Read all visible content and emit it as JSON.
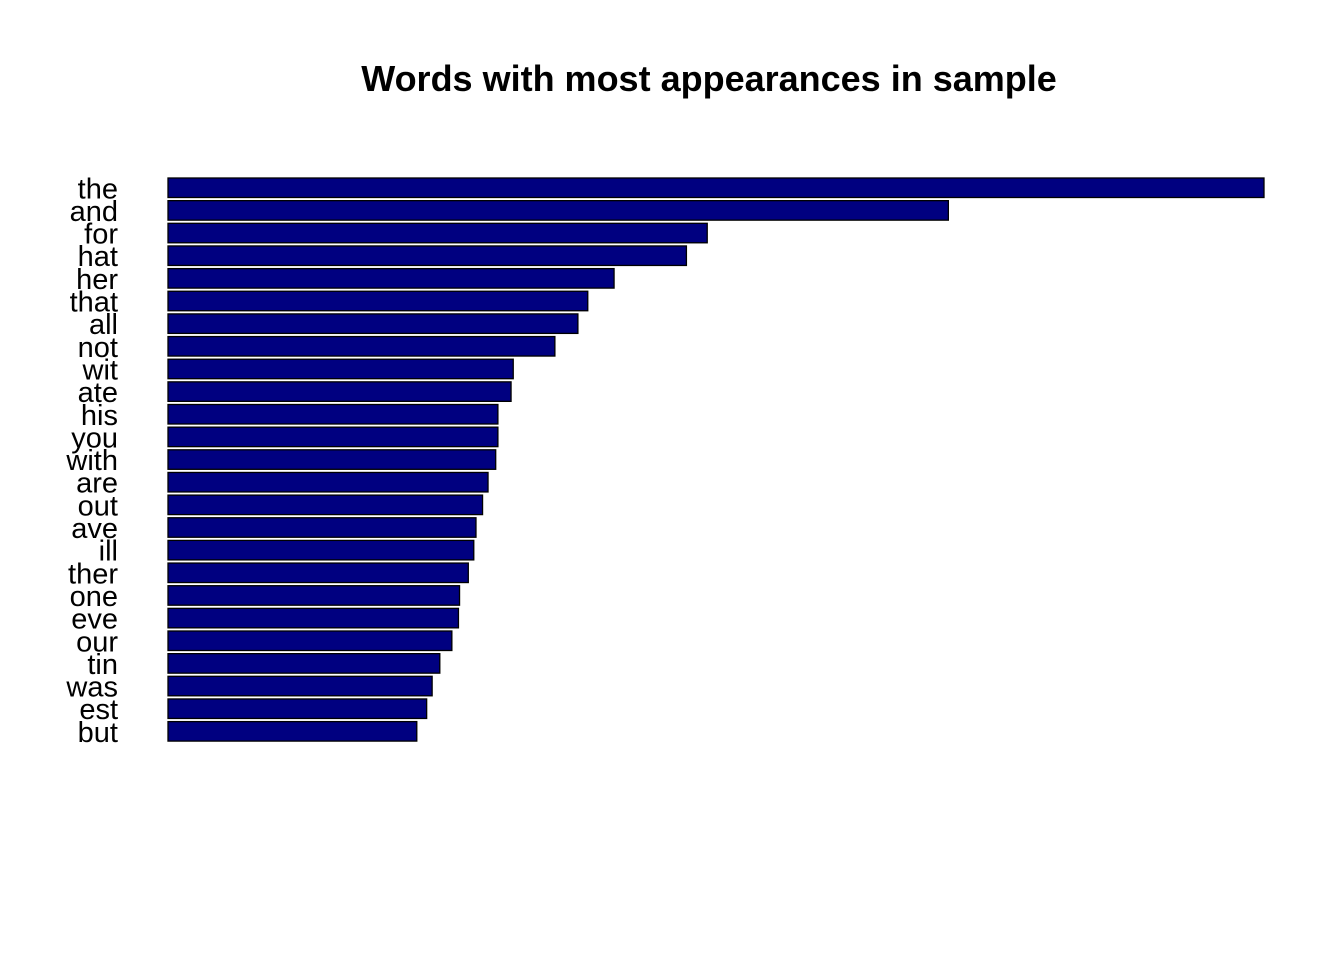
{
  "chart_data": {
    "type": "bar",
    "orientation": "horizontal",
    "title": "Words with most appearances in sample",
    "xlabel": "",
    "ylabel": "",
    "categories": [
      "the",
      "and",
      "for",
      "hat",
      "her",
      "that",
      "all",
      "not",
      "wit",
      "ate",
      "his",
      "you",
      "with",
      "are",
      "out",
      "ave",
      "ill",
      "ther",
      "one",
      "eve",
      "our",
      "tin",
      "was",
      "est",
      "but"
    ],
    "values": [
      1000,
      712,
      492,
      473,
      407,
      383,
      374,
      353,
      315,
      313,
      301,
      301,
      299,
      292,
      287,
      281,
      279,
      274,
      266,
      265,
      259,
      248,
      241,
      236,
      227
    ],
    "xlim": [
      0,
      1000
    ],
    "grid": false,
    "legend": "none",
    "axes_shown": false,
    "bar_color": "#000080",
    "bar_border_color": "#000000"
  }
}
